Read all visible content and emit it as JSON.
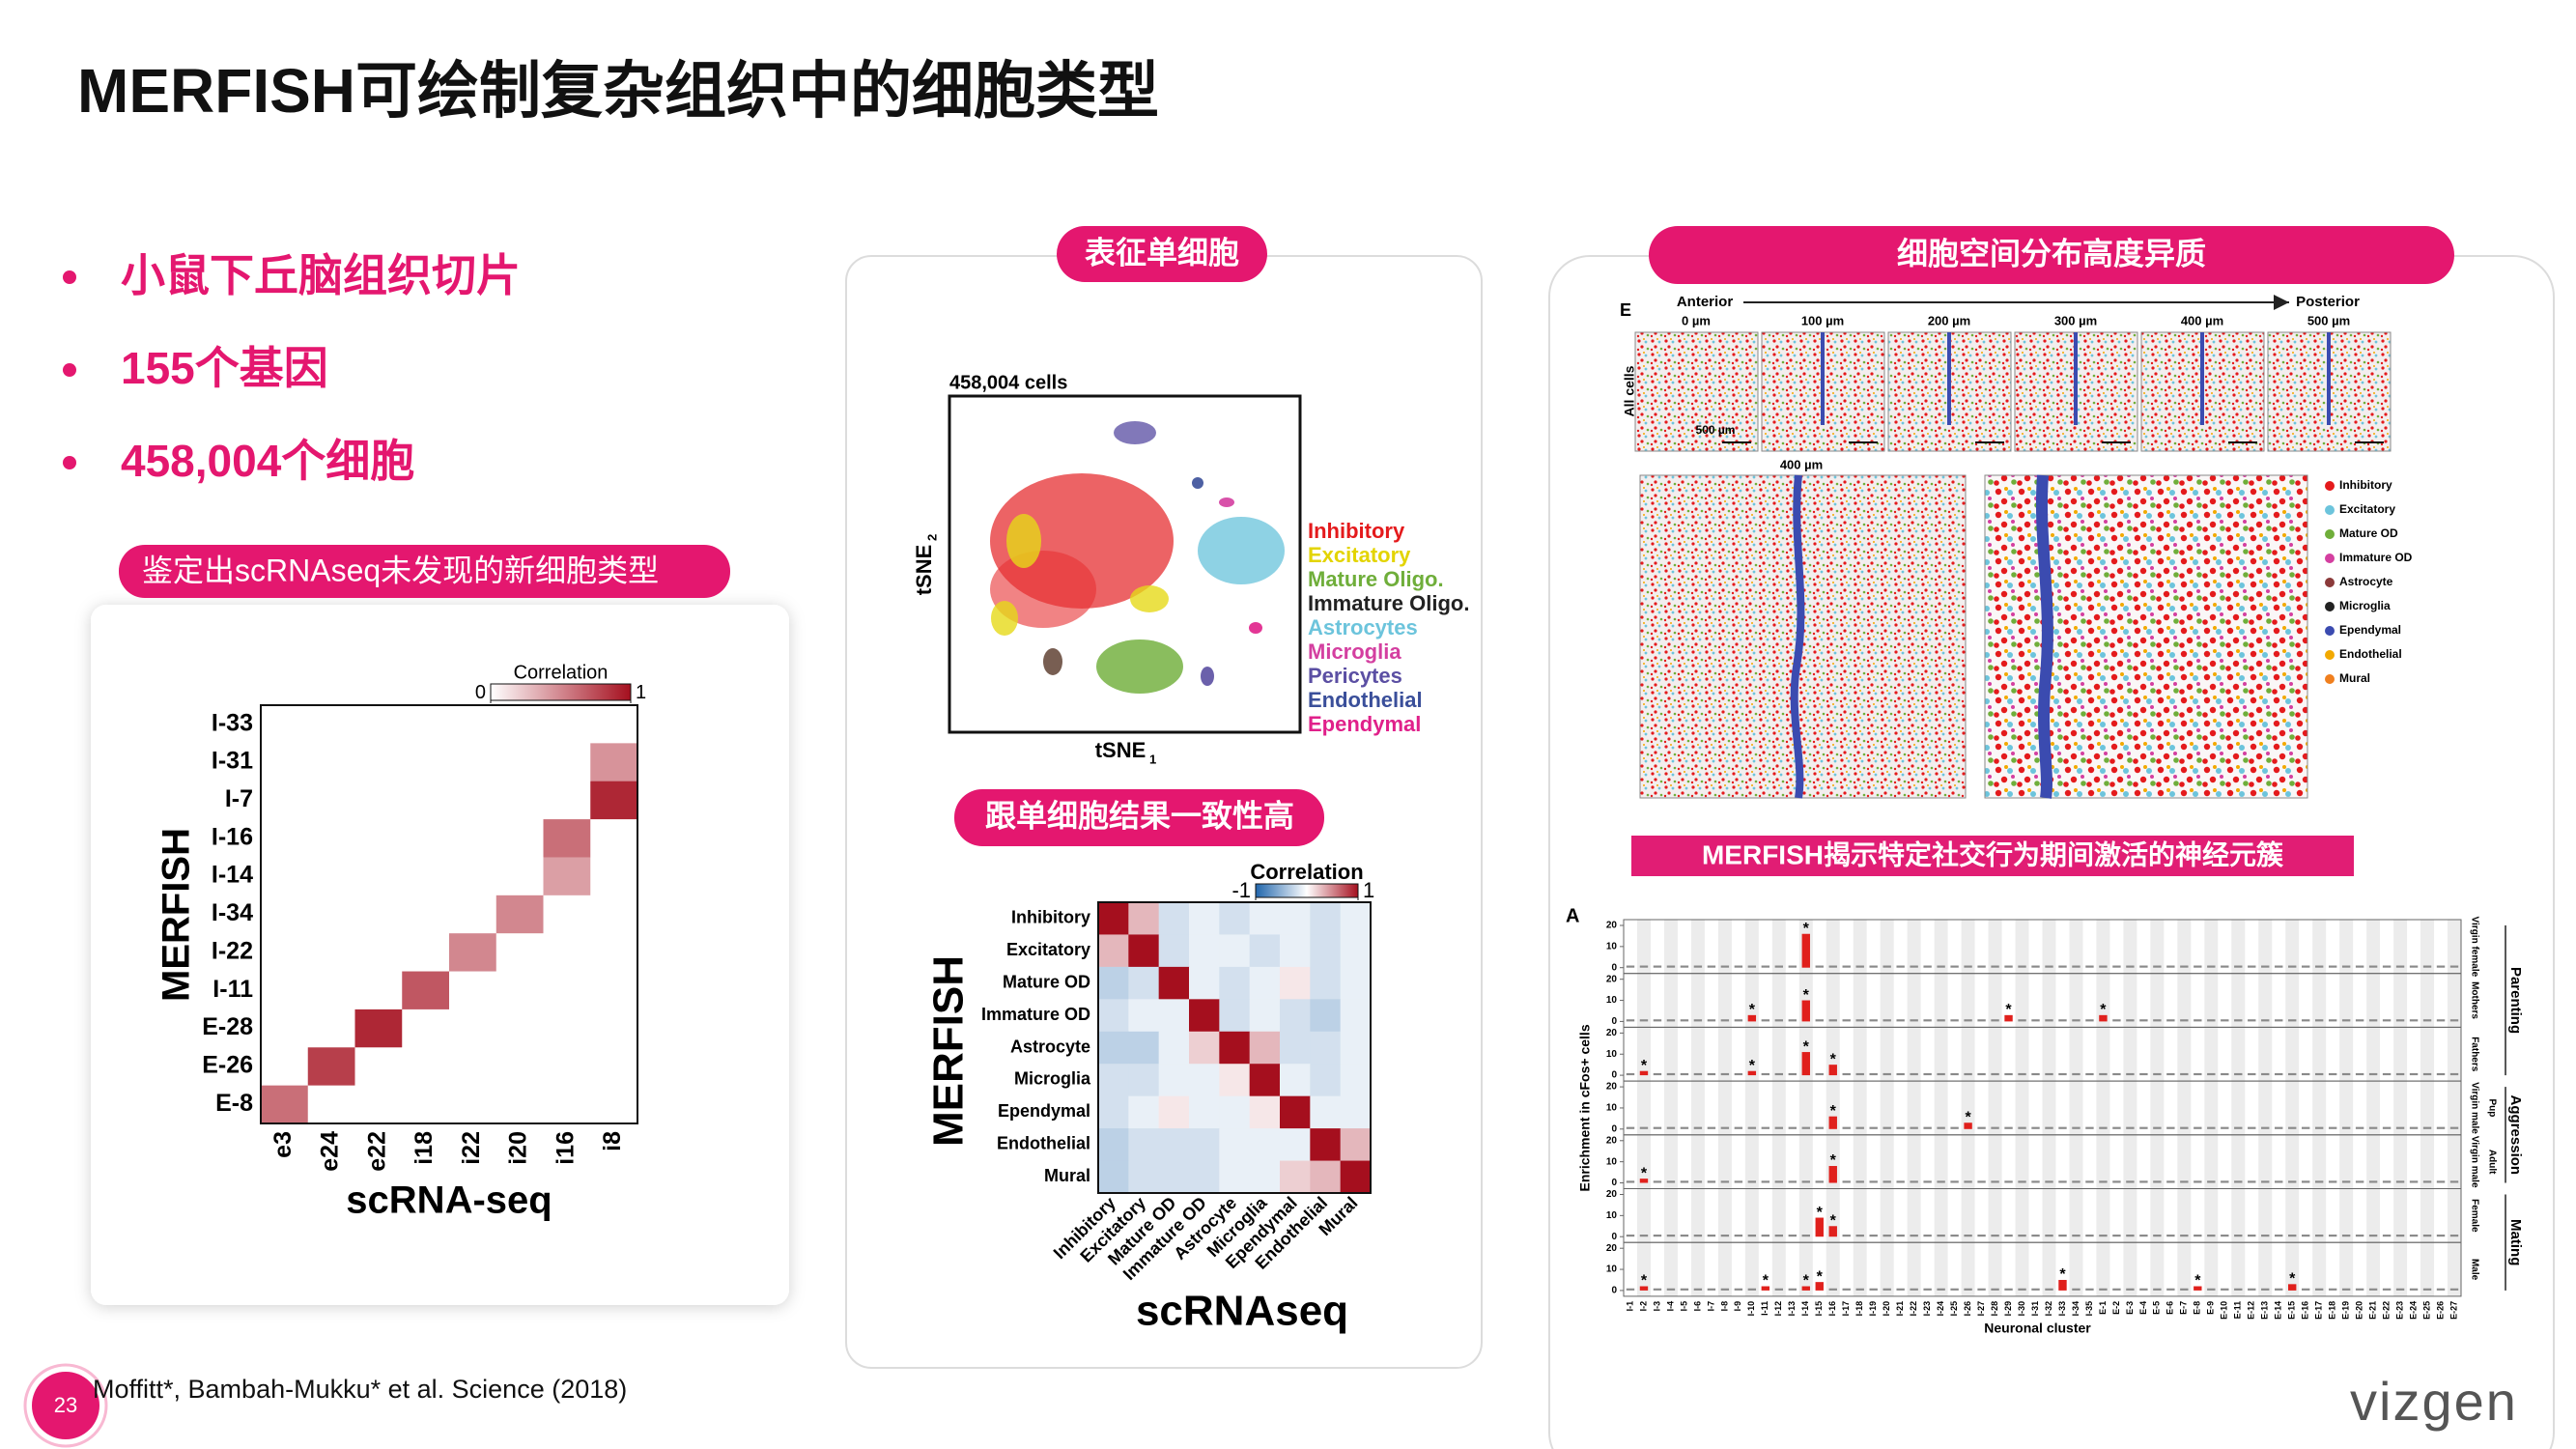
{
  "title": "MERFISH可绘制复杂组织中的细胞类型",
  "bullets": [
    "小鼠下丘脑组织切片",
    "155个基因",
    "458,004个细胞"
  ],
  "heatmap1": {
    "banner": "鉴定出scRNAseq未发现的新细胞类型",
    "type": "heatmap",
    "ylabel": "MERFISH",
    "xlabel": "scRNA-seq",
    "rows": [
      "I-33",
      "I-31",
      "I-7",
      "I-16",
      "I-14",
      "I-34",
      "I-22",
      "I-11",
      "E-28",
      "E-26",
      "E-8"
    ],
    "columns": [
      "e3",
      "e24",
      "e22",
      "i18",
      "i22",
      "i20",
      "i16",
      "i8"
    ],
    "values": [
      [
        0,
        0,
        0,
        0,
        0,
        0,
        0,
        0
      ],
      [
        0,
        0,
        0,
        0,
        0,
        0,
        0,
        0.45
      ],
      [
        0,
        0,
        0,
        0,
        0,
        0,
        0,
        0.9
      ],
      [
        0,
        0,
        0,
        0,
        0,
        0,
        0.6,
        0
      ],
      [
        0,
        0,
        0,
        0,
        0,
        0,
        0.4,
        0
      ],
      [
        0,
        0,
        0,
        0,
        0,
        0.5,
        0,
        0
      ],
      [
        0,
        0,
        0,
        0,
        0.5,
        0,
        0,
        0
      ],
      [
        0,
        0,
        0,
        0.7,
        0,
        0,
        0,
        0
      ],
      [
        0,
        0,
        0.9,
        0,
        0,
        0,
        0,
        0
      ],
      [
        0,
        0.8,
        0,
        0,
        0,
        0,
        0,
        0
      ],
      [
        0.6,
        0,
        0,
        0,
        0,
        0,
        0,
        0
      ]
    ],
    "colorbar": {
      "title": "Correlation",
      "lim": [
        0,
        1
      ],
      "ticks": [
        0,
        1
      ]
    }
  },
  "tsne": {
    "banner": "表征单细胞",
    "title": "458,004 cells",
    "xlabel": "tSNE",
    "xlabel_sub": "1",
    "ylabel": "tSNE",
    "ylabel_sub": "2",
    "legend": [
      {
        "name": "Inhibitory",
        "color": "#e41a1c"
      },
      {
        "name": "Excitatory",
        "color": "#e3d400"
      },
      {
        "name": "Mature Oligo.",
        "color": "#6fae3a"
      },
      {
        "name": "Immature Oligo.",
        "color": "#222222"
      },
      {
        "name": "Astrocytes",
        "color": "#6cc4dc"
      },
      {
        "name": "Microglia",
        "color": "#d43fa0"
      },
      {
        "name": "Pericytes",
        "color": "#5b4fa3"
      },
      {
        "name": "Endothelial",
        "color": "#3a4f9a"
      },
      {
        "name": "Ependymal",
        "color": "#e0208a"
      }
    ]
  },
  "heatmap2": {
    "banner": "跟单细胞结果一致性高",
    "type": "heatmap",
    "ylabel": "MERFISH",
    "xlabel": "scRNAseq",
    "rows": [
      "Inhibitory",
      "Excitatory",
      "Mature OD",
      "Immature OD",
      "Astrocyte",
      "Microglia",
      "Ependymal",
      "Endothelial",
      "Mural"
    ],
    "columns": [
      "Inhibitory",
      "Excitatory",
      "Mature OD",
      "Immature OD",
      "Astrocyte",
      "Microglia",
      "Ependymal",
      "Endothelial",
      "Mural"
    ],
    "values": [
      [
        1,
        0.3,
        -0.2,
        -0.1,
        -0.2,
        -0.1,
        -0.1,
        -0.2,
        -0.1
      ],
      [
        0.3,
        1,
        -0.2,
        -0.1,
        -0.1,
        -0.2,
        -0.1,
        -0.2,
        -0.1
      ],
      [
        -0.3,
        -0.2,
        1,
        -0.1,
        -0.2,
        -0.1,
        0.1,
        -0.2,
        -0.1
      ],
      [
        -0.2,
        -0.1,
        -0.1,
        1,
        -0.2,
        -0.1,
        -0.2,
        -0.3,
        -0.1
      ],
      [
        -0.3,
        -0.3,
        -0.1,
        0.2,
        1,
        0.3,
        -0.2,
        -0.2,
        -0.1
      ],
      [
        -0.2,
        -0.2,
        -0.1,
        -0.1,
        0.1,
        1,
        -0.1,
        -0.2,
        -0.1
      ],
      [
        -0.2,
        -0.1,
        0.1,
        -0.1,
        -0.1,
        0.1,
        1,
        -0.1,
        -0.1
      ],
      [
        -0.3,
        -0.2,
        -0.2,
        -0.2,
        -0.1,
        -0.1,
        -0.1,
        1,
        0.3
      ],
      [
        -0.3,
        -0.2,
        -0.2,
        -0.2,
        -0.1,
        -0.1,
        0.2,
        0.3,
        1
      ]
    ],
    "colorbar": {
      "title": "Correlation",
      "lim": [
        -1,
        1
      ],
      "ticks": [
        -1,
        1
      ]
    }
  },
  "spatial": {
    "banner": "细胞空间分布高度异质",
    "panel_label": "E",
    "anterior": "Anterior",
    "posterior": "Posterior",
    "positions": [
      "0 µm",
      "100 µm",
      "200 µm",
      "300 µm",
      "400 µm",
      "500 µm"
    ],
    "row_label": "All cells",
    "scale_bar": "500 µm",
    "zoom_label": "400 µm",
    "legend": [
      {
        "name": "Inhibitory",
        "color": "#e41a1c"
      },
      {
        "name": "Excitatory",
        "color": "#6cc4dc"
      },
      {
        "name": "Mature OD",
        "color": "#6fae3a"
      },
      {
        "name": "Immature OD",
        "color": "#d43fa0"
      },
      {
        "name": "Astrocyte",
        "color": "#8b3a3a"
      },
      {
        "name": "Microglia",
        "color": "#222222"
      },
      {
        "name": "Ependymal",
        "color": "#3b4bb0"
      },
      {
        "name": "Endothelial",
        "color": "#f2a900"
      },
      {
        "name": "Mural",
        "color": "#f07f1e"
      }
    ]
  },
  "bars": {
    "banner": "MERFISH揭示特定社交行为期间激活的神经元簇",
    "type": "bar",
    "panel_label": "A",
    "ylabel": "Enrichment in cFos+ cells",
    "xlabel": "Neuronal cluster",
    "star": "*",
    "ylim": [
      0,
      20
    ],
    "yticks": [
      0,
      10,
      20
    ],
    "categories": [
      "I-1",
      "I-2",
      "I-3",
      "I-4",
      "I-5",
      "I-6",
      "I-7",
      "I-8",
      "I-9",
      "I-10",
      "I-11",
      "I-12",
      "I-13",
      "I-14",
      "I-15",
      "I-16",
      "I-17",
      "I-18",
      "I-19",
      "I-20",
      "I-21",
      "I-22",
      "I-23",
      "I-24",
      "I-25",
      "I-26",
      "I-27",
      "I-28",
      "I-29",
      "I-30",
      "I-31",
      "I-32",
      "I-33",
      "I-34",
      "I-35",
      "E-1",
      "E-2",
      "E-3",
      "E-4",
      "E-5",
      "E-6",
      "E-7",
      "E-8",
      "E-9",
      "E-10",
      "E-11",
      "E-12",
      "E-13",
      "E-14",
      "E-15",
      "E-16",
      "E-17",
      "E-18",
      "E-19",
      "E-20",
      "E-21",
      "E-22",
      "E-23",
      "E-24",
      "E-25",
      "E-26",
      "E-27"
    ],
    "series": [
      {
        "name": "Virgin female",
        "values": [
          1,
          1,
          1,
          1,
          1,
          1,
          1,
          1,
          1,
          1,
          1,
          1,
          1,
          16,
          1,
          1,
          1,
          1,
          1,
          1,
          1,
          1,
          1,
          1,
          1,
          1,
          1,
          1,
          1,
          1,
          1,
          1,
          1,
          1,
          1,
          1,
          1,
          1,
          1,
          1,
          1,
          1,
          1,
          1,
          1,
          1,
          1,
          1,
          1,
          1,
          1,
          1,
          1,
          1,
          1,
          1,
          1,
          1,
          1,
          1,
          1,
          1
        ]
      },
      {
        "name": "Mothers",
        "values": [
          1,
          1,
          1,
          1,
          1,
          1,
          1,
          1,
          1,
          3,
          1,
          1,
          1,
          10,
          1,
          1,
          1,
          1,
          1,
          1,
          1,
          1,
          1,
          1,
          1,
          1,
          1,
          1,
          3,
          1,
          1,
          1,
          1,
          1,
          1,
          3,
          1,
          1,
          1,
          1,
          1,
          1,
          1,
          1,
          1,
          1,
          1,
          1,
          1,
          1,
          1,
          1,
          1,
          1,
          1,
          1,
          1,
          1,
          1,
          1,
          1,
          1
        ]
      },
      {
        "name": "Fathers",
        "values": [
          1,
          2,
          1,
          1,
          1,
          1,
          1,
          1,
          1,
          2,
          1,
          1,
          1,
          11,
          1,
          5,
          1,
          1,
          1,
          1,
          1,
          1,
          1,
          1,
          1,
          1,
          1,
          1,
          1,
          1,
          1,
          1,
          1,
          1,
          1,
          1,
          1,
          1,
          1,
          1,
          1,
          1,
          1,
          1,
          1,
          1,
          1,
          1,
          1,
          1,
          1,
          1,
          1,
          1,
          1,
          1,
          1,
          1,
          1,
          1,
          1,
          1
        ]
      },
      {
        "name": "Virgin male",
        "values": [
          1,
          1,
          1,
          1,
          1,
          1,
          1,
          1,
          1,
          1,
          1,
          1,
          1,
          1,
          1,
          6,
          1,
          1,
          1,
          1,
          1,
          1,
          1,
          1,
          1,
          3,
          1,
          1,
          1,
          1,
          1,
          1,
          1,
          1,
          1,
          1,
          1,
          1,
          1,
          1,
          1,
          1,
          1,
          1,
          1,
          1,
          1,
          1,
          1,
          1,
          1,
          1,
          1,
          1,
          1,
          1,
          1,
          1,
          1,
          1,
          1,
          1
        ]
      },
      {
        "name": "Virgin male",
        "values": [
          1,
          2,
          1,
          1,
          1,
          1,
          1,
          1,
          1,
          1,
          1,
          1,
          1,
          1,
          1,
          8,
          1,
          1,
          1,
          1,
          1,
          1,
          1,
          1,
          1,
          1,
          1,
          1,
          1,
          1,
          1,
          1,
          1,
          1,
          1,
          1,
          1,
          1,
          1,
          1,
          1,
          1,
          1,
          1,
          1,
          1,
          1,
          1,
          1,
          1,
          1,
          1,
          1,
          1,
          1,
          1,
          1,
          1,
          1,
          1,
          1,
          1
        ]
      },
      {
        "name": "Female",
        "values": [
          1,
          1,
          1,
          1,
          1,
          1,
          1,
          1,
          1,
          1,
          1,
          1,
          1,
          1,
          9,
          5,
          1,
          1,
          1,
          1,
          1,
          1,
          1,
          1,
          1,
          1,
          1,
          1,
          1,
          1,
          1,
          1,
          1,
          1,
          1,
          1,
          1,
          1,
          1,
          1,
          1,
          1,
          1,
          1,
          1,
          1,
          1,
          1,
          1,
          1,
          1,
          1,
          1,
          1,
          1,
          1,
          1,
          1,
          1,
          1,
          1,
          1
        ]
      },
      {
        "name": "Male",
        "values": [
          1,
          2,
          1,
          1,
          1,
          1,
          1,
          1,
          1,
          1,
          2,
          1,
          1,
          2,
          4,
          1,
          1,
          1,
          1,
          1,
          1,
          1,
          1,
          1,
          1,
          1,
          1,
          1,
          1,
          1,
          1,
          1,
          5,
          1,
          1,
          1,
          1,
          1,
          1,
          1,
          1,
          1,
          2,
          1,
          1,
          1,
          1,
          1,
          1,
          3,
          1,
          1,
          1,
          1,
          1,
          1,
          1,
          1,
          1,
          1,
          1,
          1
        ]
      }
    ],
    "groups": [
      {
        "label": "Parenting"
      },
      {
        "label": "Aggression",
        "sub": [
          "Pup",
          "Adult"
        ]
      },
      {
        "label": "Mating"
      }
    ]
  },
  "footer": {
    "page": "23",
    "citation": "Moffitt*, Bambah-Mukku* et al. Science (2018)",
    "logo": "vizgen"
  }
}
